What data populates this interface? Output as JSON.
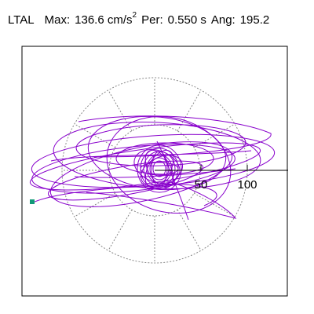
{
  "header": {
    "station": "LTAL",
    "max_label": "Max:",
    "max_value": "136.6",
    "max_unit": "cm/s",
    "max_unit_exp": "2",
    "per_label": "Per:",
    "per_value": "0.550 s",
    "ang_label": "Ang:",
    "ang_value": "195.2"
  },
  "radial_scale": {
    "ring_labels": [
      "50",
      "100"
    ]
  },
  "colors": {
    "trace": "#8800cc",
    "marker": "#119977",
    "grid": "#888888",
    "frame": "#000000"
  }
}
